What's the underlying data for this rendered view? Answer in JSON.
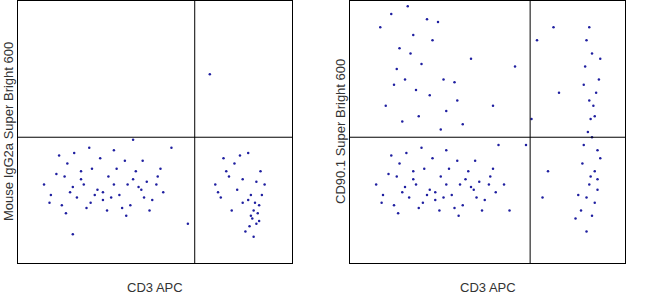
{
  "chart_data": [
    {
      "type": "scatter",
      "x_label": "CD3 APC",
      "y_label": "Mouse IgG2a Super Bright 600",
      "xlim": [
        0,
        1000
      ],
      "ylim": [
        0,
        1000
      ],
      "tick_labels": false,
      "quadrant": {
        "x": 645,
        "y": 480
      },
      "color": "#1f1fa0",
      "marker": "dot",
      "x": [
        95,
        120,
        140,
        160,
        180,
        200,
        215,
        230,
        250,
        270,
        290,
        310,
        330,
        350,
        370,
        390,
        410,
        430,
        450,
        470,
        490,
        510,
        530,
        150,
        175,
        205,
        240,
        265,
        300,
        325,
        360,
        395,
        420,
        455,
        480,
        505,
        115,
        190,
        280,
        340,
        400,
        460,
        520,
        230,
        310,
        380,
        440,
        260,
        170,
        350,
        720,
        740,
        760,
        780,
        800,
        820,
        840,
        850,
        860,
        870,
        880,
        890,
        900,
        750,
        790,
        830,
        855,
        865,
        875,
        845,
        810,
        770,
        730,
        885,
        860,
        850,
        870,
        840,
        880,
        820,
        700,
        420,
        200,
        620,
        560
      ],
      "y": [
        300,
        260,
        340,
        220,
        380,
        290,
        250,
        320,
        210,
        360,
        280,
        240,
        330,
        300,
        260,
        390,
        220,
        350,
        280,
        310,
        240,
        330,
        270,
        410,
        190,
        420,
        300,
        230,
        400,
        200,
        360,
        180,
        320,
        390,
        200,
        300,
        230,
        270,
        260,
        250,
        300,
        250,
        360,
        350,
        270,
        210,
        290,
        440,
        330,
        430,
        300,
        250,
        350,
        200,
        280,
        320,
        240,
        180,
        200,
        150,
        220,
        260,
        300,
        400,
        380,
        120,
        170,
        230,
        190,
        140,
        410,
        330,
        270,
        350,
        100,
        260,
        310,
        420,
        160,
        230,
        720,
        470,
        110,
        150,
        440
      ]
    },
    {
      "type": "scatter",
      "x_label": "CD3 APC",
      "y_label": "CD90.1 Super Bright 600",
      "xlim": [
        0,
        1000
      ],
      "ylim": [
        0,
        1000
      ],
      "tick_labels": false,
      "quadrant": {
        "x": 655,
        "y": 480
      },
      "color": "#1f1fa0",
      "marker": "dot",
      "x": [
        95,
        120,
        140,
        160,
        180,
        200,
        215,
        230,
        250,
        270,
        290,
        310,
        330,
        350,
        370,
        390,
        410,
        430,
        450,
        470,
        490,
        510,
        530,
        150,
        175,
        205,
        240,
        265,
        300,
        325,
        360,
        395,
        420,
        455,
        480,
        505,
        115,
        190,
        280,
        340,
        400,
        460,
        520,
        230,
        310,
        380,
        440,
        260,
        170,
        350,
        110,
        150,
        180,
        200,
        230,
        260,
        290,
        320,
        350,
        380,
        410,
        130,
        170,
        210,
        250,
        300,
        340,
        390,
        440,
        190,
        240,
        280,
        330,
        160,
        220,
        520,
        560,
        600,
        640,
        680,
        720,
        760,
        580,
        660,
        740,
        540,
        700,
        840,
        860,
        870,
        880,
        890,
        900,
        910,
        850,
        865,
        875,
        885,
        895,
        905,
        855,
        880,
        860,
        870,
        890,
        900,
        845,
        830,
        820,
        880,
        870,
        860,
        890,
        910,
        850,
        900,
        875
      ],
      "y": [
        300,
        260,
        340,
        220,
        380,
        290,
        250,
        320,
        210,
        360,
        280,
        240,
        330,
        300,
        260,
        390,
        220,
        350,
        280,
        310,
        240,
        330,
        270,
        410,
        190,
        420,
        300,
        230,
        400,
        200,
        360,
        180,
        320,
        390,
        200,
        300,
        230,
        270,
        260,
        250,
        300,
        250,
        360,
        350,
        270,
        210,
        290,
        440,
        330,
        430,
        900,
        950,
        820,
        700,
        870,
        760,
        640,
        920,
        580,
        690,
        530,
        600,
        740,
        980,
        560,
        850,
        700,
        620,
        780,
        540,
        660,
        930,
        510,
        680,
        800,
        600,
        300,
        750,
        450,
        850,
        350,
        650,
        200,
        550,
        900,
        450,
        250,
        200,
        250,
        300,
        180,
        350,
        280,
        400,
        450,
        500,
        550,
        600,
        650,
        700,
        750,
        800,
        850,
        900,
        230,
        320,
        380,
        260,
        170,
        480,
        620,
        120,
        560,
        780,
        680,
        430,
        330
      ]
    }
  ]
}
